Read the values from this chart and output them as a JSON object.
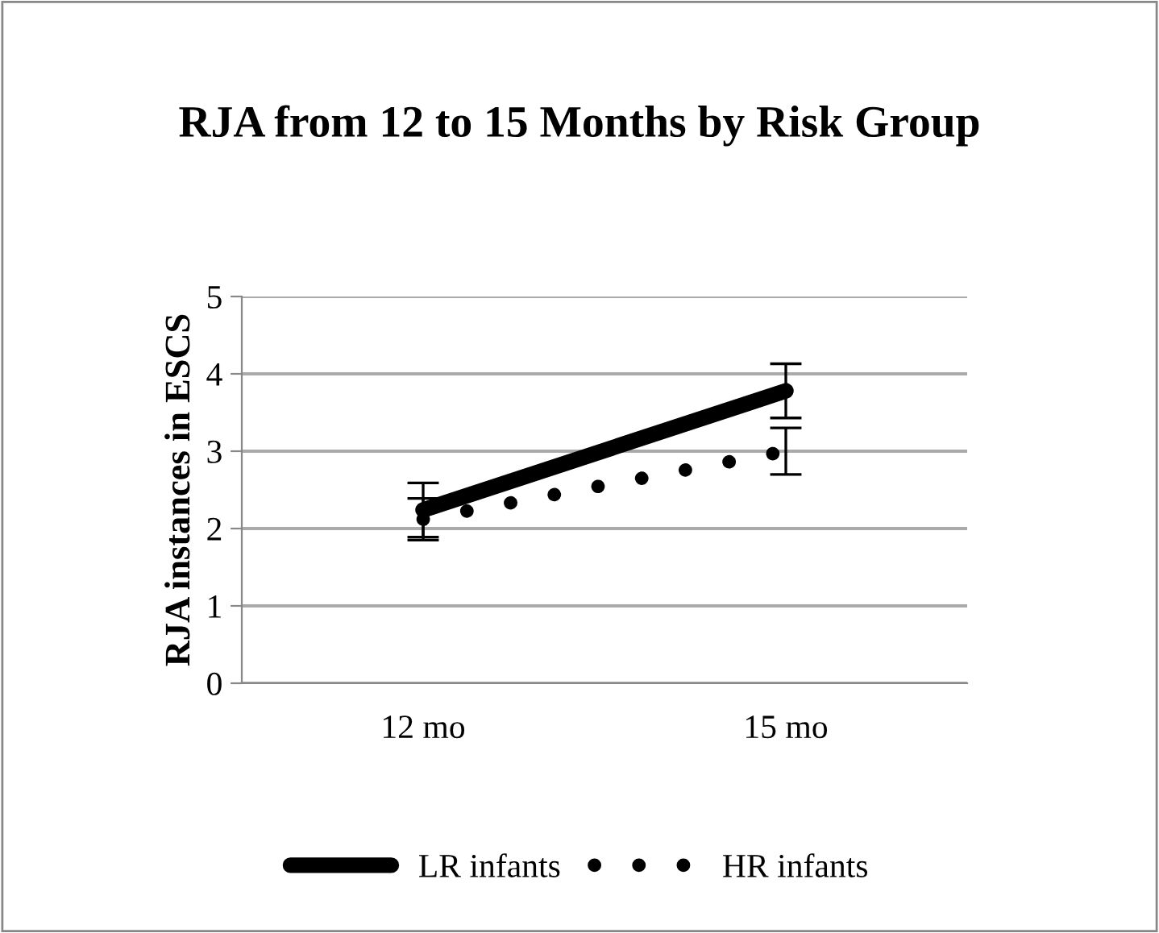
{
  "chart_data": {
    "type": "line",
    "title": "RJA from 12 to 15 Months by Risk Group",
    "ylabel": "RJA instances in ESCS",
    "categories": [
      "12 mo",
      "15 mo"
    ],
    "series": [
      {
        "name": "LR infants",
        "color": "#000000",
        "values": [
          2.24,
          3.78
        ],
        "errors": [
          0.35,
          0.35
        ],
        "line_style": "solid"
      },
      {
        "name": "HR infants",
        "color": "#000000",
        "values": [
          2.12,
          3.0
        ],
        "errors": [
          0.27,
          0.3
        ],
        "line_style": "dotted"
      }
    ],
    "ylim": [
      0,
      5
    ],
    "yticks": [
      0,
      1,
      2,
      3,
      4,
      5
    ],
    "grid": "y",
    "legend": "bottom",
    "marker": "none"
  }
}
